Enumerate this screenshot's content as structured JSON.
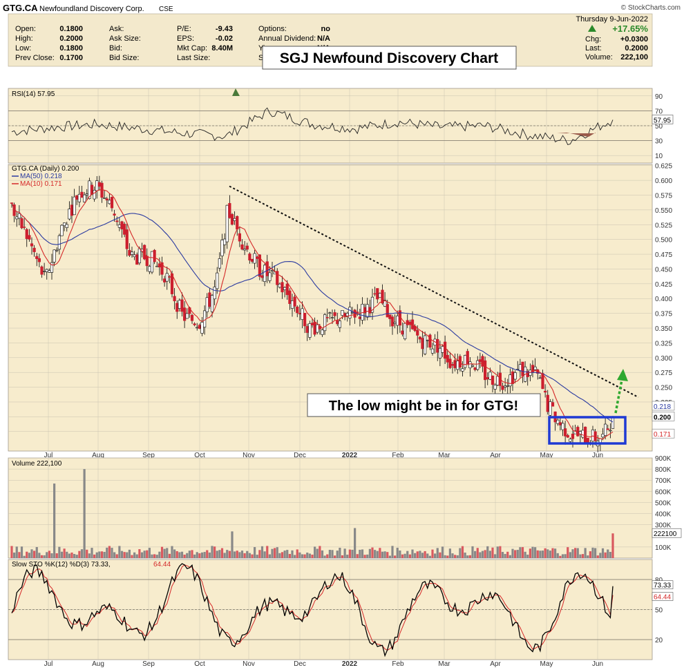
{
  "header": {
    "symbol": "GTG.CA",
    "company": "Newfoundland Discovery Corp.",
    "exchange": "CSE",
    "watermark": "© StockCharts.com",
    "date": "Thursday  9-Jun-2022",
    "change_pct": "+17.65%",
    "change_color": "#2a8a2a",
    "quote_fields": [
      {
        "label": "Open:",
        "value": "0.1800"
      },
      {
        "label": "High:",
        "value": "0.2000"
      },
      {
        "label": "Low:",
        "value": "0.1800"
      },
      {
        "label": "Prev Close:",
        "value": "0.1700"
      },
      {
        "label": "Ask:",
        "value": ""
      },
      {
        "label": "Ask Size:",
        "value": ""
      },
      {
        "label": "Bid:",
        "value": ""
      },
      {
        "label": "Bid Size:",
        "value": ""
      },
      {
        "label": "P/E:",
        "value": "-9.43"
      },
      {
        "label": "EPS:",
        "value": "-0.02"
      },
      {
        "label": "Mkt Cap:",
        "value": "8.40M"
      },
      {
        "label": "Last Size:",
        "value": ""
      },
      {
        "label": "Options:",
        "value": "no"
      },
      {
        "label": "Annual Dividend:",
        "value": "N/A"
      },
      {
        "label": "Yi",
        "value": "N/A"
      },
      {
        "label": "S",
        "value": ""
      }
    ],
    "right_fields": [
      {
        "label": "Chg:",
        "value": "+0.0300"
      },
      {
        "label": "Last:",
        "value": "0.2000"
      },
      {
        "label": "Volume:",
        "value": "222,100"
      }
    ]
  },
  "annotations": {
    "title_box": "SGJ Newfound Discovery Chart",
    "callout": "The low might be in for GTG!"
  },
  "colors": {
    "panel_bg": "#f7eccd",
    "grid": "#c8c2b0",
    "up": "#ffffff",
    "down": "#cc1f2e",
    "ma50": "#2a3aa0",
    "ma10": "#d42828",
    "trendline": "#111111",
    "box": "#1f3ad4",
    "arrow": "#2fa82f",
    "volume_up": "#888888",
    "volume_down": "#d9595f"
  },
  "chart_data": [
    {
      "type": "line",
      "name": "RSI(14)",
      "legend": "RSI(14) 57.95",
      "last_value": "57.95",
      "ylim": [
        0,
        100
      ],
      "y_ticks": [
        "90",
        "70",
        "50",
        "30",
        "10"
      ],
      "levels": [
        70,
        50,
        30
      ],
      "x_labels": [
        "Jul",
        "Aug",
        "Sep",
        "Oct",
        "Nov",
        "Dec",
        "2022",
        "Feb",
        "Mar",
        "Apr",
        "May",
        "Jun"
      ],
      "monthly_values": [
        42,
        48,
        52,
        46,
        40,
        36,
        70,
        52,
        46,
        55,
        48,
        50,
        38,
        30,
        58
      ]
    },
    {
      "type": "candlestick",
      "name": "GTG.CA (Daily)",
      "legend": "GTG.CA (Daily) 0.200",
      "ylim": [
        0.142,
        0.627
      ],
      "y_ticks": [
        "0.625",
        "0.600",
        "0.575",
        "0.550",
        "0.525",
        "0.500",
        "0.475",
        "0.450",
        "0.425",
        "0.400",
        "0.375",
        "0.350",
        "0.325",
        "0.300",
        "0.275",
        "0.250",
        "0.225",
        "0.200",
        "0.175"
      ],
      "x_labels": [
        "Jul",
        "Aug",
        "Sep",
        "Oct",
        "Nov",
        "Dec",
        "2022",
        "Feb",
        "Mar",
        "Apr",
        "May",
        "Jun"
      ],
      "series": [
        {
          "name": "MA(50)",
          "legend": "MA(50) 0.218",
          "last_value": "0.218"
        },
        {
          "name": "MA(10)",
          "legend": "MA(10) 0.171",
          "last_value": "0.171"
        }
      ],
      "close_price_label": "0.200",
      "close_path": [
        [
          "2021-06-15",
          0.555
        ],
        [
          "2021-06-25",
          0.5
        ],
        [
          "2021-07-05",
          0.43
        ],
        [
          "2021-07-15",
          0.52
        ],
        [
          "2021-07-25",
          0.58
        ],
        [
          "2021-08-05",
          0.59
        ],
        [
          "2021-08-15",
          0.55
        ],
        [
          "2021-08-25",
          0.47
        ],
        [
          "2021-09-05",
          0.47
        ],
        [
          "2021-09-15",
          0.44
        ],
        [
          "2021-09-25",
          0.37
        ],
        [
          "2021-10-05",
          0.36
        ],
        [
          "2021-10-15",
          0.42
        ],
        [
          "2021-10-22",
          0.55
        ],
        [
          "2021-11-01",
          0.49
        ],
        [
          "2021-11-10",
          0.45
        ],
        [
          "2021-11-20",
          0.43
        ],
        [
          "2021-12-01",
          0.39
        ],
        [
          "2021-12-10",
          0.35
        ],
        [
          "2021-12-20",
          0.36
        ],
        [
          "2022-01-01",
          0.37
        ],
        [
          "2022-01-10",
          0.38
        ],
        [
          "2022-01-20",
          0.4
        ],
        [
          "2022-01-27",
          0.37
        ],
        [
          "2022-02-05",
          0.35
        ],
        [
          "2022-02-15",
          0.33
        ],
        [
          "2022-02-25",
          0.32
        ],
        [
          "2022-03-05",
          0.29
        ],
        [
          "2022-03-15",
          0.3
        ],
        [
          "2022-03-25",
          0.27
        ],
        [
          "2022-04-05",
          0.26
        ],
        [
          "2022-04-15",
          0.28
        ],
        [
          "2022-04-25",
          0.27
        ],
        [
          "2022-05-01",
          0.22
        ],
        [
          "2022-05-08",
          0.19
        ],
        [
          "2022-05-15",
          0.17
        ],
        [
          "2022-05-25",
          0.165
        ],
        [
          "2022-06-03",
          0.165
        ],
        [
          "2022-06-09",
          0.2
        ]
      ],
      "trendline": [
        [
          "2021-10-23",
          0.59
        ],
        [
          "2022-06-30",
          0.233
        ]
      ]
    },
    {
      "type": "bar",
      "name": "Volume",
      "legend": "Volume 222,100",
      "last_value": "222100",
      "ylim": [
        0,
        900000
      ],
      "y_ticks": [
        "900K",
        "800K",
        "700K",
        "600K",
        "500K",
        "400K",
        "300K",
        "100K"
      ],
      "spikes": [
        [
          "2021-07-10",
          670000
        ],
        [
          "2021-07-28",
          800000
        ],
        [
          "2021-10-25",
          240000
        ],
        [
          "2022-01-06",
          270000
        ],
        [
          "2022-06-09",
          222100
        ]
      ]
    },
    {
      "type": "line",
      "name": "Slow STO %K(12) %D(3)",
      "legend_prefix": "Slow STO %K(12) %D(3) 73.33,",
      "legend_d": "64.44",
      "ylim": [
        0,
        100
      ],
      "y_ticks": [
        "80",
        "50",
        "20"
      ],
      "levels": [
        80,
        50,
        20
      ],
      "k_last": "73.33",
      "d_last": "64.44",
      "x_labels": [
        "Jul",
        "Aug",
        "Sep",
        "Oct",
        "Nov",
        "Dec",
        "2022",
        "Feb",
        "Mar",
        "Apr",
        "May",
        "Jun"
      ]
    }
  ]
}
